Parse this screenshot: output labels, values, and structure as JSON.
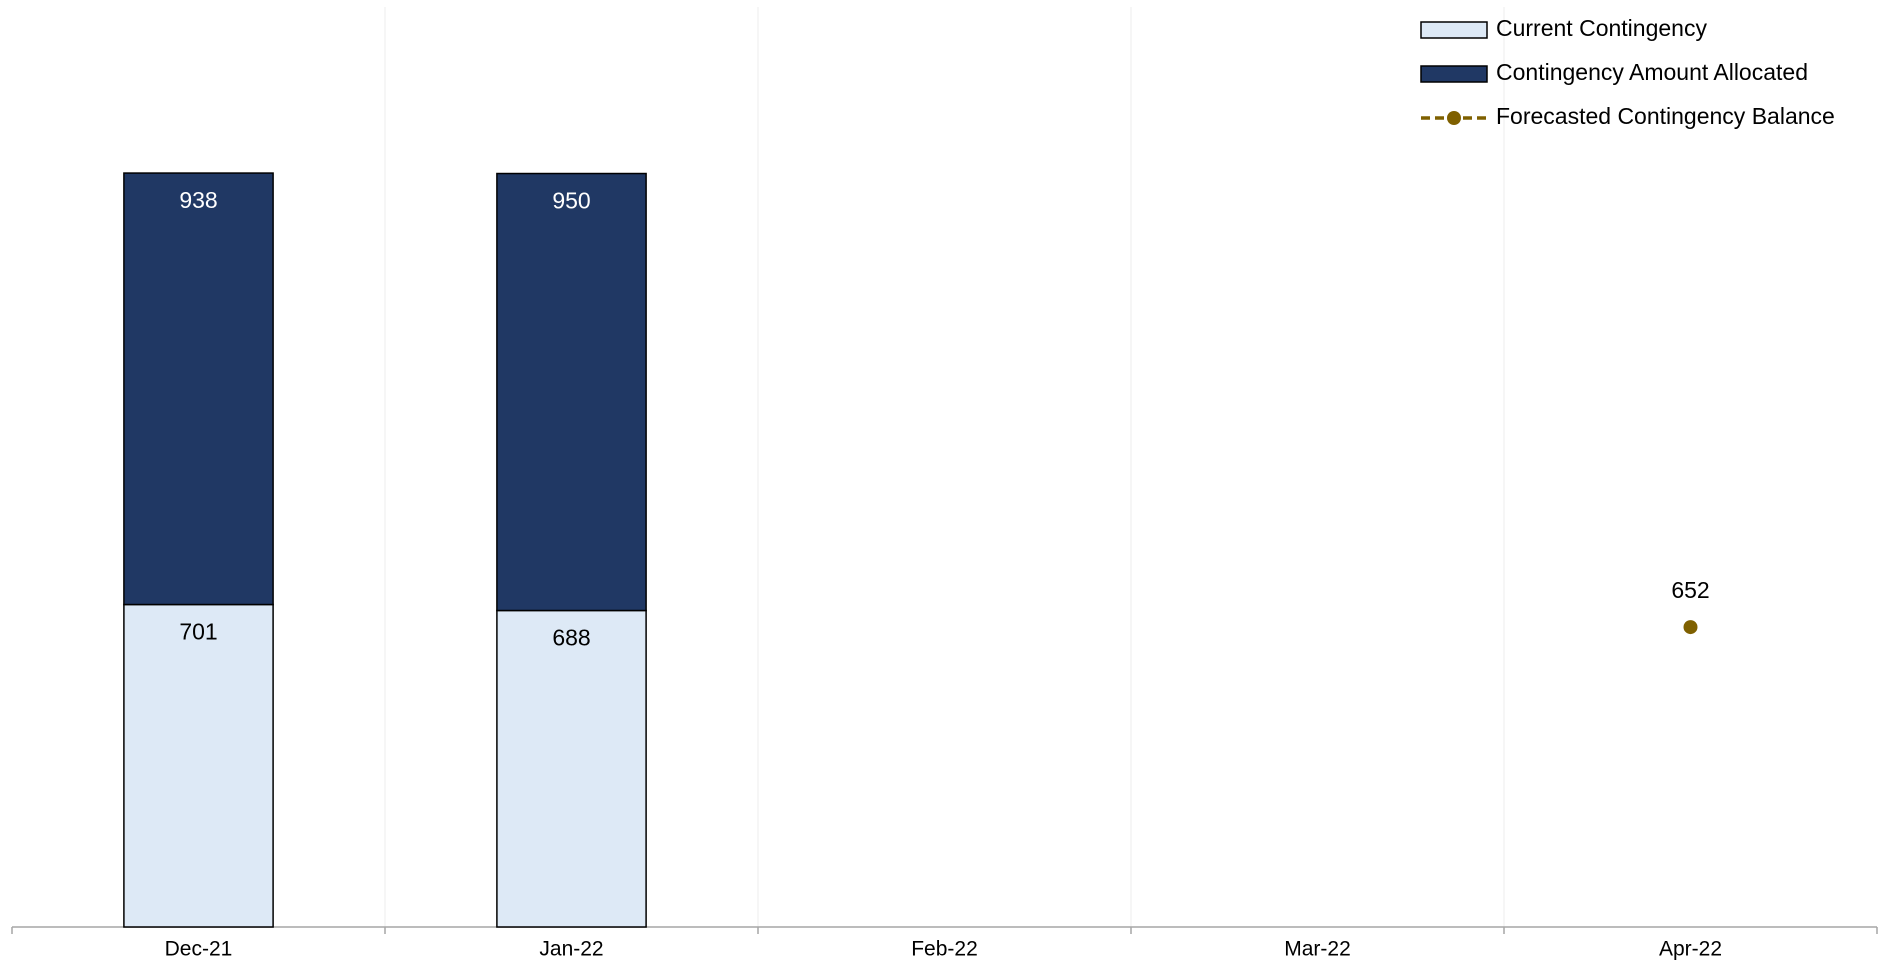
{
  "chart_data": {
    "type": "bar",
    "stacked": true,
    "categories": [
      "Dec-21",
      "Jan-22",
      "Feb-22",
      "Mar-22",
      "Apr-22"
    ],
    "series": [
      {
        "name": "Current Contingency",
        "type": "bar",
        "color": "#dde9f6",
        "values": [
          701,
          688,
          null,
          null,
          null
        ]
      },
      {
        "name": "Contingency Amount Allocated",
        "type": "bar",
        "color": "#203864",
        "values": [
          938,
          950,
          null,
          null,
          null
        ]
      },
      {
        "name": "Forecasted Contingency Balance",
        "type": "line",
        "color": "#7f6000",
        "dashed": true,
        "connect_nulls": true,
        "values": [
          null,
          null,
          null,
          null,
          652
        ]
      }
    ],
    "ylim": [
      0,
      2000
    ],
    "legend": "top-right"
  }
}
